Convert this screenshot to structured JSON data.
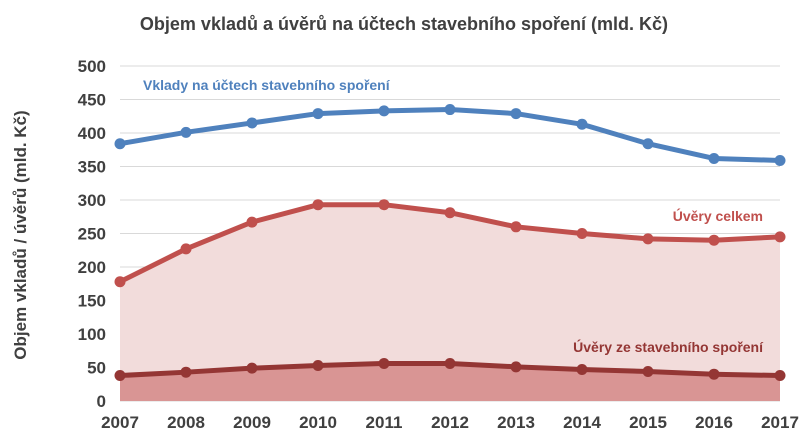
{
  "chart_data": {
    "type": "line",
    "title": "Objem vkladů a úvěrů na účtech stavebního spoření  (mld. Kč)",
    "xlabel": "",
    "ylabel": "Objem vkladů / úvěrů (mld. Kč)",
    "ylim": [
      0,
      500
    ],
    "yticks": [
      "0",
      "50",
      "100",
      "150",
      "200",
      "250",
      "300",
      "350",
      "400",
      "450",
      "500"
    ],
    "categories": [
      "2007",
      "2008",
      "2009",
      "2010",
      "2011",
      "2012",
      "2013",
      "2014",
      "2015",
      "2016",
      "2017"
    ],
    "grid": true,
    "series": [
      {
        "name": "Vklady na účtech stavebního spoření",
        "color": "#4f81bd",
        "fill": "none",
        "values": [
          384,
          401,
          415,
          429,
          433,
          435,
          429,
          413,
          384,
          362,
          359
        ]
      },
      {
        "name": "Úvěry celkem",
        "color": "#c0504d",
        "fill": "#f2dcdb",
        "values": [
          178,
          227,
          267,
          293,
          293,
          281,
          260,
          250,
          242,
          240,
          245
        ]
      },
      {
        "name": "Úvěry ze stavebního spoření",
        "color": "#943634",
        "fill": "#d99594",
        "values": [
          38,
          43,
          49,
          53,
          56,
          56,
          51,
          47,
          44,
          40,
          38
        ]
      }
    ]
  }
}
